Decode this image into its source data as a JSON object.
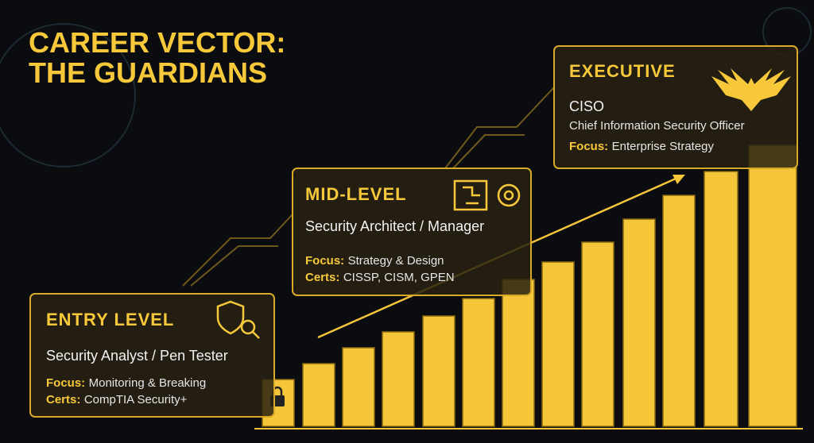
{
  "header": {
    "title": [
      "CAREER VECTOR:",
      "THE GUARDIANS"
    ]
  },
  "cards": [
    {
      "level": "ENTRY LEVEL",
      "role": "Security Analyst / Pen Tester",
      "details": [
        {
          "label": "Focus:",
          "text": "Monitoring & Breaking"
        },
        {
          "label": "Certs:",
          "text": "CompTIA Security+"
        }
      ]
    },
    {
      "level": "MID-LEVEL",
      "role": "Security Architect / Manager",
      "details": [
        {
          "label": "Focus:",
          "text": "Strategy & Design"
        },
        {
          "label": "Certs:",
          "text": "CISSP, CISM, GPEN"
        }
      ]
    },
    {
      "level": "EXECUTIVE",
      "role": "CISO",
      "subtitle": "Chief Information Security Officer",
      "details": [
        {
          "label": "Focus:",
          "text": "Enterprise Strategy"
        }
      ]
    }
  ]
}
